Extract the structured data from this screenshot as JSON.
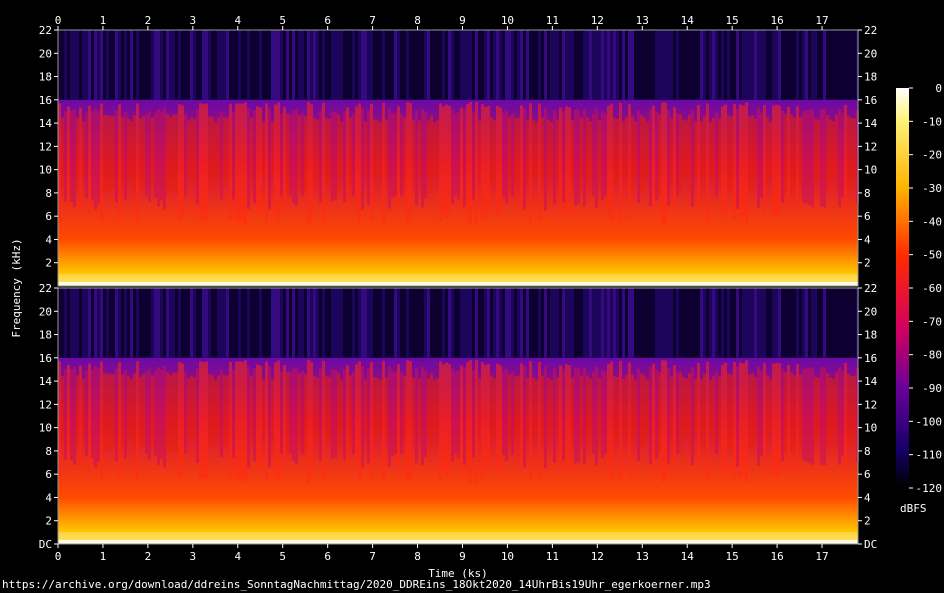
{
  "chart_data": {
    "type": "heatmap",
    "xlabel": "Time (ks)",
    "ylabel": "Frequency (kHz)",
    "x_ticks": [
      "0",
      "1",
      "2",
      "3",
      "4",
      "5",
      "6",
      "7",
      "8",
      "9",
      "10",
      "11",
      "12",
      "13",
      "14",
      "15",
      "16",
      "17"
    ],
    "xlim": [
      0,
      17.8
    ],
    "y_ticks_upper": [
      "2",
      "4",
      "6",
      "8",
      "10",
      "12",
      "14",
      "16",
      "18",
      "20",
      "22"
    ],
    "y_ticks_lower": [
      "DC",
      "2",
      "4",
      "6",
      "8",
      "10",
      "12",
      "14",
      "16",
      "18",
      "20",
      "22"
    ],
    "ylim": [
      0,
      22
    ],
    "channels": 2,
    "colorbar": {
      "label": "dBFS",
      "ticks": [
        "0",
        "-10",
        "-20",
        "-30",
        "-40",
        "-50",
        "-60",
        "-70",
        "-80",
        "-90",
        "-100",
        "-110",
        "-120"
      ],
      "range": [
        -120,
        0
      ]
    },
    "cutoff_khz": 16
  },
  "caption": "https://archive.org/download/ddreins_SonntagNachmittag/2020_DDREins_18Okt2020_14UhrBis19Uhr_egerkoerner.mp3"
}
